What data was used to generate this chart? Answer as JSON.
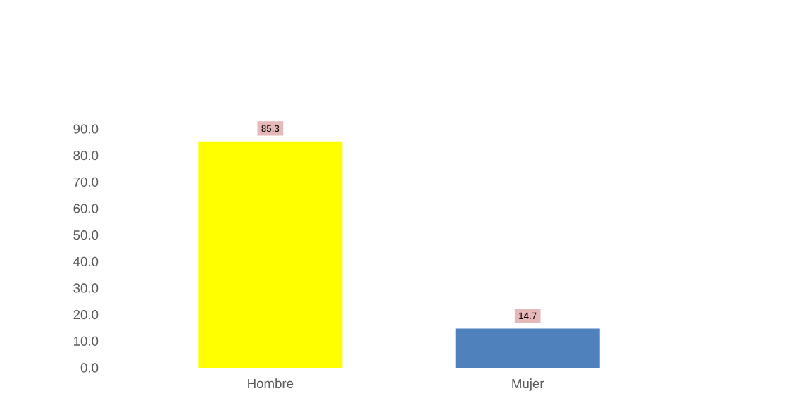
{
  "chart_data": {
    "type": "bar",
    "categories": [
      "Hombre",
      "Mujer"
    ],
    "values": [
      85.3,
      14.7
    ],
    "colors": [
      "#ffff00",
      "#4f81bd"
    ],
    "value_labels": [
      "85.3",
      "14.7"
    ],
    "ylim": [
      0,
      90
    ],
    "yticks": [
      {
        "value": 0,
        "label": "0.0"
      },
      {
        "value": 10,
        "label": "10.0"
      },
      {
        "value": 20,
        "label": "20.0"
      },
      {
        "value": 30,
        "label": "30.0"
      },
      {
        "value": 40,
        "label": "40.0"
      },
      {
        "value": 50,
        "label": "50.0"
      },
      {
        "value": 60,
        "label": "60.0"
      },
      {
        "value": 70,
        "label": "70.0"
      },
      {
        "value": 80,
        "label": "80.0"
      },
      {
        "value": 90,
        "label": "90.0"
      }
    ]
  }
}
